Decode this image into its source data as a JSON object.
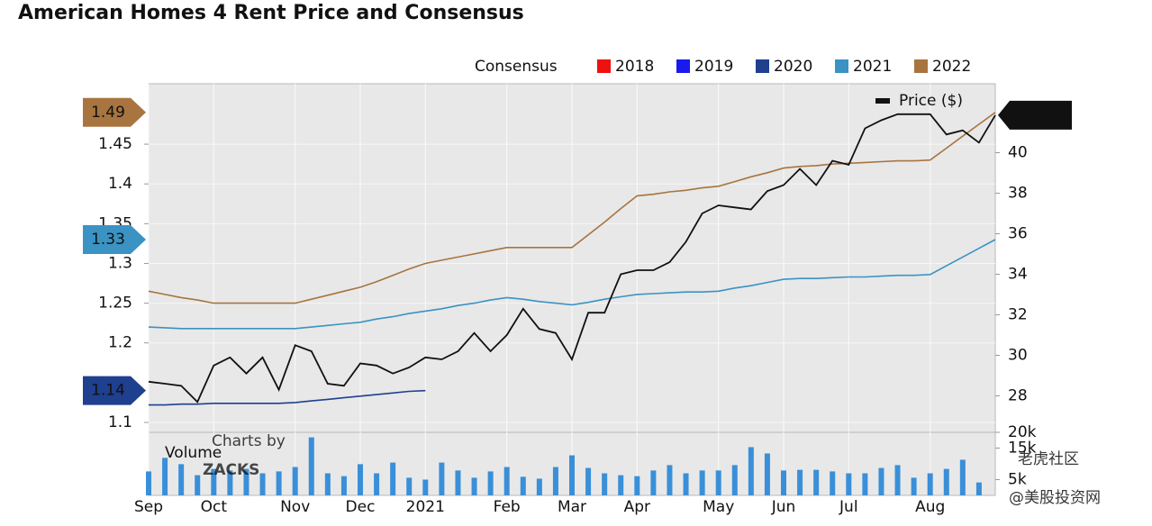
{
  "chart_data": {
    "type": "line",
    "title": "American Homes 4 Rent Price and Consensus",
    "legend_title": "Consensus",
    "categories": [
      "Sep",
      null,
      null,
      null,
      "Oct",
      null,
      null,
      null,
      null,
      "Nov",
      null,
      null,
      null,
      "Dec",
      null,
      null,
      null,
      "2021",
      null,
      null,
      null,
      null,
      "Feb",
      null,
      null,
      null,
      "Mar",
      null,
      null,
      null,
      "Apr",
      null,
      null,
      null,
      null,
      "May",
      null,
      null,
      null,
      "Jun",
      null,
      null,
      null,
      "Jul",
      null,
      null,
      null,
      null,
      "Aug",
      null,
      null,
      null,
      null
    ],
    "series": [
      {
        "name": "2018",
        "color": "#ee1111"
      },
      {
        "name": "2019",
        "color": "#1a1aee"
      },
      {
        "name": "2020",
        "color": "#1f3f8f",
        "values": [
          1.122,
          1.122,
          1.123,
          1.123,
          1.124,
          1.124,
          1.124,
          1.124,
          1.124,
          1.125,
          1.127,
          1.129,
          1.131,
          1.133,
          1.135,
          1.137,
          1.139,
          1.14,
          null,
          null,
          null,
          null,
          null,
          null,
          null,
          null,
          null,
          null,
          null,
          null,
          null,
          null,
          null,
          null,
          null,
          null,
          null,
          null,
          null,
          null,
          null,
          null,
          null,
          null,
          null,
          null,
          null,
          null,
          null,
          null,
          null,
          null,
          null
        ]
      },
      {
        "name": "2021",
        "color": "#3a93c3",
        "values": [
          1.22,
          1.219,
          1.218,
          1.218,
          1.218,
          1.218,
          1.218,
          1.218,
          1.218,
          1.218,
          1.22,
          1.222,
          1.224,
          1.226,
          1.23,
          1.233,
          1.237,
          1.24,
          1.243,
          1.247,
          1.25,
          1.254,
          1.257,
          1.255,
          1.252,
          1.25,
          1.248,
          1.251,
          1.255,
          1.258,
          1.261,
          1.262,
          1.263,
          1.264,
          1.264,
          1.265,
          1.269,
          1.272,
          1.276,
          1.28,
          1.281,
          1.281,
          1.282,
          1.283,
          1.283,
          1.284,
          1.285,
          1.285,
          1.286,
          1.297,
          1.308,
          1.319,
          1.33
        ]
      },
      {
        "name": "2022",
        "color": "#a8743f",
        "values": [
          1.265,
          1.261,
          1.257,
          1.254,
          1.25,
          1.25,
          1.25,
          1.25,
          1.25,
          1.25,
          1.255,
          1.26,
          1.265,
          1.27,
          1.277,
          1.285,
          1.293,
          1.3,
          1.304,
          1.308,
          1.312,
          1.316,
          1.32,
          1.32,
          1.32,
          1.32,
          1.32,
          1.336,
          1.352,
          1.369,
          1.385,
          1.387,
          1.39,
          1.392,
          1.395,
          1.397,
          1.403,
          1.409,
          1.414,
          1.42,
          1.422,
          1.423,
          1.425,
          1.426,
          1.427,
          1.428,
          1.429,
          1.429,
          1.43,
          1.445,
          1.46,
          1.475,
          1.49
        ]
      },
      {
        "name": "Price ($)",
        "color": "#111111",
        "axis": "y2",
        "values": [
          28.7,
          28.6,
          28.5,
          27.7,
          29.5,
          29.9,
          29.1,
          29.9,
          28.3,
          30.5,
          30.2,
          28.6,
          28.5,
          29.6,
          29.5,
          29.1,
          29.4,
          29.9,
          29.8,
          30.2,
          31.1,
          30.2,
          31.0,
          32.3,
          31.3,
          31.1,
          29.8,
          32.1,
          32.1,
          34.0,
          34.2,
          34.2,
          34.6,
          35.6,
          37.0,
          37.4,
          37.3,
          37.2,
          38.1,
          38.4,
          39.2,
          38.4,
          39.6,
          39.4,
          41.2,
          41.6,
          41.9,
          41.9,
          41.9,
          40.9,
          41.1,
          40.5,
          41.85
        ]
      }
    ],
    "ylim": [
      1.0875,
      1.526
    ],
    "yticks": [
      1.1,
      1.2,
      1.25,
      1.3,
      1.35,
      1.4,
      1.45
    ],
    "y2lim": [
      26.2,
      43.4
    ],
    "y2ticks": [
      28,
      30,
      32,
      34,
      36,
      38,
      40
    ],
    "grid": true,
    "volume": {
      "label": "Volume",
      "color": "#3a8fd8",
      "values": [
        7600,
        11900,
        9900,
        6400,
        8400,
        7900,
        8400,
        7000,
        7600,
        9000,
        18400,
        7000,
        6100,
        9900,
        7000,
        10400,
        5600,
        5000,
        10400,
        7900,
        5600,
        7600,
        9000,
        5900,
        5300,
        9000,
        12700,
        8700,
        7000,
        6400,
        6100,
        7900,
        9600,
        7000,
        7900,
        7900,
        9600,
        15300,
        13300,
        7900,
        8100,
        8100,
        7600,
        7000,
        7000,
        8700,
        9600,
        5600,
        7000,
        8400,
        11300,
        4100,
        null
      ],
      "ylim": [
        0,
        20000
      ],
      "yticks": [
        {
          "value": 20000,
          "label": "20k"
        },
        {
          "value": 15000,
          "label": "15k"
        },
        {
          "value": 5000,
          "label": "5k"
        }
      ]
    },
    "watermark": {
      "charts_by": "Charts by",
      "brand": "ZACKS"
    }
  },
  "overlay": {
    "community": "老虎社区",
    "handle": "@美股投资网"
  }
}
